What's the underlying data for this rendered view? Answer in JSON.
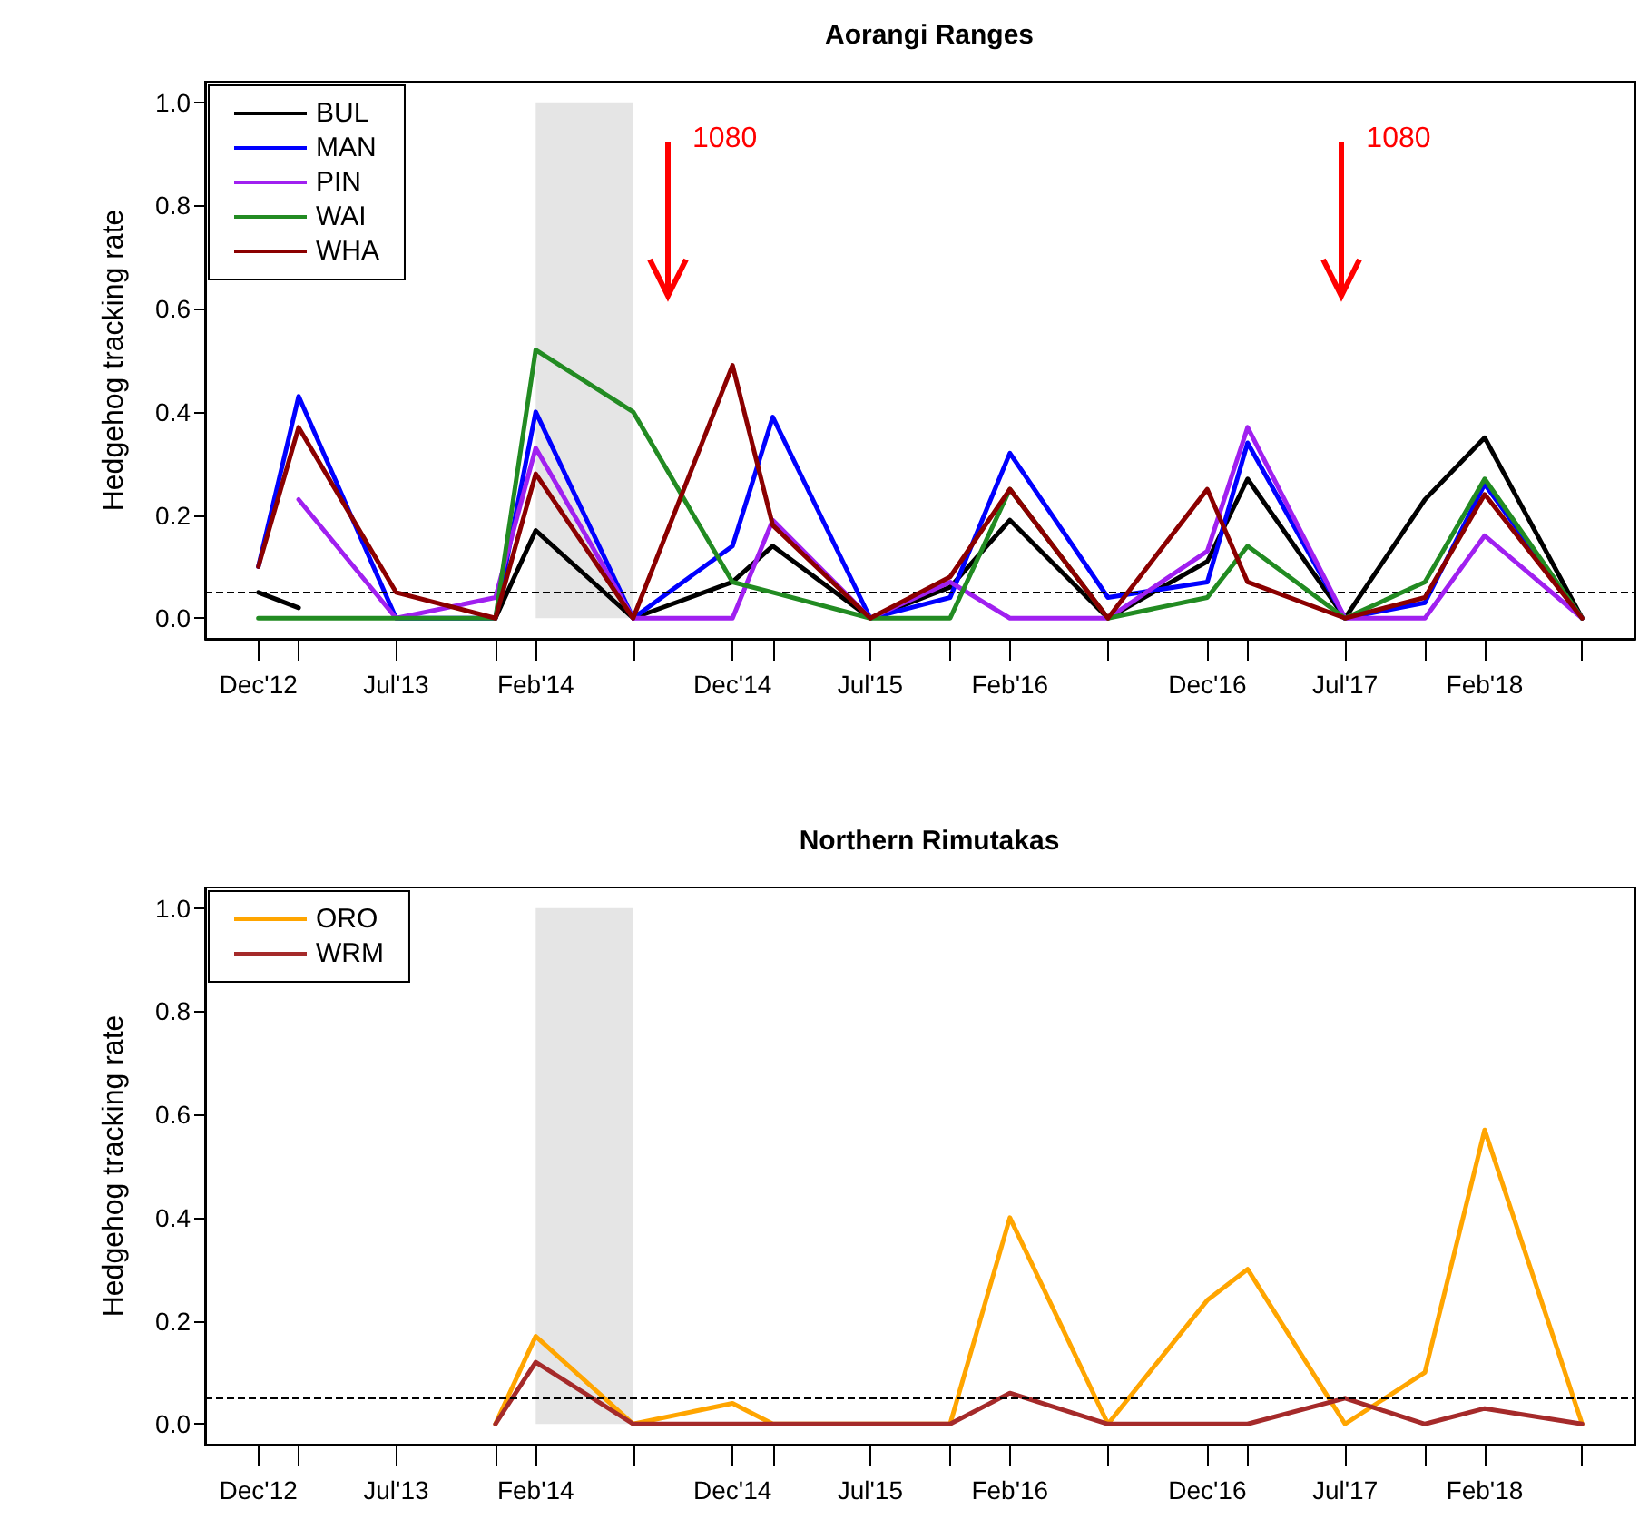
{
  "chart_data": [
    {
      "type": "line",
      "title": "Aorangi Ranges",
      "ylabel": "Hedgehog tracking rate",
      "x": [
        "2012-12",
        "2013-02",
        "2013-07",
        "2013-12",
        "2014-02",
        "2014-07",
        "2014-12",
        "2015-02",
        "2015-07",
        "2015-11",
        "2016-02",
        "2016-07",
        "2016-12",
        "2017-02",
        "2017-07",
        "2017-11",
        "2018-02",
        "2018-07"
      ],
      "series": [
        {
          "name": "BUL",
          "color": "#000000",
          "values": [
            0.05,
            0.02,
            null,
            0,
            0.17,
            0,
            0.07,
            0.14,
            0,
            0.06,
            0.19,
            0,
            0.11,
            0.27,
            0,
            0.23,
            0.35,
            0
          ]
        },
        {
          "name": "MAN",
          "color": "#0000ff",
          "values": [
            0.1,
            0.43,
            0,
            0,
            0.4,
            0,
            0.14,
            0.39,
            0,
            0.04,
            0.32,
            0.04,
            0.07,
            0.34,
            0,
            0.03,
            0.26,
            0
          ]
        },
        {
          "name": "PIN",
          "color": "#a020f0",
          "values": [
            null,
            0.23,
            0,
            0.04,
            0.33,
            0,
            0,
            0.19,
            0,
            0.07,
            0,
            0,
            0.13,
            0.37,
            0,
            0,
            0.16,
            0
          ]
        },
        {
          "name": "WAI",
          "color": "#228b22",
          "values": [
            0,
            0,
            0,
            0,
            0.52,
            0.4,
            0.07,
            0.05,
            0,
            0,
            0.25,
            0,
            0.04,
            0.14,
            0,
            0.07,
            0.27,
            0
          ]
        },
        {
          "name": "WHA",
          "color": "#8b0000",
          "values": [
            0.1,
            0.37,
            0.05,
            0,
            0.28,
            0,
            0.49,
            0.18,
            0,
            0.08,
            0.25,
            0,
            0.25,
            0.07,
            0,
            0.04,
            0.24,
            0
          ]
        }
      ],
      "xlim": [
        "2012-09-10",
        "2018-09-21"
      ],
      "xticks": [
        {
          "value": "2012-12",
          "label": "Dec'12"
        },
        {
          "value": "2013-02",
          "label": null
        },
        {
          "value": "2013-07",
          "label": "Jul'13"
        },
        {
          "value": "2013-12",
          "label": null
        },
        {
          "value": "2014-02",
          "label": "Feb'14"
        },
        {
          "value": "2014-07",
          "label": null
        },
        {
          "value": "2014-12",
          "label": "Dec'14"
        },
        {
          "value": "2015-02",
          "label": null
        },
        {
          "value": "2015-07",
          "label": "Jul'15"
        },
        {
          "value": "2015-11",
          "label": null
        },
        {
          "value": "2016-02",
          "label": "Feb'16"
        },
        {
          "value": "2016-07",
          "label": null
        },
        {
          "value": "2016-12",
          "label": "Dec'16"
        },
        {
          "value": "2017-02",
          "label": null
        },
        {
          "value": "2017-07",
          "label": "Jul'17"
        },
        {
          "value": "2017-11",
          "label": null
        },
        {
          "value": "2018-02",
          "label": "Feb'18"
        },
        {
          "value": "2018-07",
          "label": null
        }
      ],
      "ylim": [
        -0.04,
        1.04
      ],
      "yticks": [
        {
          "value": 0,
          "label": "0.0"
        },
        {
          "value": 0.2,
          "label": "0.2"
        },
        {
          "value": 0.4,
          "label": "0.4"
        },
        {
          "value": 0.6,
          "label": "0.6"
        },
        {
          "value": 0.8,
          "label": "0.8"
        },
        {
          "value": 1,
          "label": "1.0"
        }
      ],
      "ref_lines": [
        {
          "axis": "y",
          "value": 0.05,
          "color": "#000000",
          "line_style": "dashed"
        }
      ],
      "bands": [
        {
          "axis": "x",
          "from": "2014-02",
          "to": "2014-07",
          "color": "#e5e5e5"
        }
      ],
      "annotations": [
        "1080",
        "1080"
      ],
      "legend": "top left",
      "grid": false,
      "marker": "none"
    },
    {
      "type": "line",
      "title": "Northern Rimutakas",
      "ylabel": "Hedgehog tracking rate",
      "x": [
        "2013-12",
        "2014-02",
        "2014-07",
        "2014-12",
        "2015-02",
        "2015-07",
        "2015-11",
        "2016-02",
        "2016-07",
        "2016-12",
        "2017-02",
        "2017-07",
        "2017-11",
        "2018-02",
        "2018-07"
      ],
      "series": [
        {
          "name": "ORO",
          "color": "#ffa500",
          "values": [
            0,
            0.17,
            0,
            0.04,
            0,
            0,
            0,
            0.4,
            0,
            0.24,
            0.3,
            0,
            0.1,
            0.57,
            0
          ]
        },
        {
          "name": "WRM",
          "color": "#a52a2a",
          "values": [
            0,
            0.12,
            0,
            0,
            0,
            0,
            0,
            0.06,
            0,
            0,
            0,
            0.05,
            0,
            0.03,
            0
          ]
        }
      ],
      "xlim": [
        "2012-09-10",
        "2018-09-21"
      ],
      "xticks": [
        {
          "value": "2012-12",
          "label": "Dec'12"
        },
        {
          "value": "2013-02",
          "label": null
        },
        {
          "value": "2013-07",
          "label": "Jul'13"
        },
        {
          "value": "2013-12",
          "label": null
        },
        {
          "value": "2014-02",
          "label": "Feb'14"
        },
        {
          "value": "2014-07",
          "label": null
        },
        {
          "value": "2014-12",
          "label": "Dec'14"
        },
        {
          "value": "2015-02",
          "label": null
        },
        {
          "value": "2015-07",
          "label": "Jul'15"
        },
        {
          "value": "2015-11",
          "label": null
        },
        {
          "value": "2016-02",
          "label": "Feb'16"
        },
        {
          "value": "2016-07",
          "label": null
        },
        {
          "value": "2016-12",
          "label": "Dec'16"
        },
        {
          "value": "2017-02",
          "label": null
        },
        {
          "value": "2017-07",
          "label": "Jul'17"
        },
        {
          "value": "2017-11",
          "label": null
        },
        {
          "value": "2018-02",
          "label": "Feb'18"
        },
        {
          "value": "2018-07",
          "label": null
        }
      ],
      "ylim": [
        -0.04,
        1.04
      ],
      "yticks": [
        {
          "value": 0,
          "label": "0.0"
        },
        {
          "value": 0.2,
          "label": "0.2"
        },
        {
          "value": 0.4,
          "label": "0.4"
        },
        {
          "value": 0.6,
          "label": "0.6"
        },
        {
          "value": 0.8,
          "label": "0.8"
        },
        {
          "value": 1,
          "label": "1.0"
        }
      ],
      "ref_lines": [
        {
          "axis": "y",
          "value": 0.05,
          "color": "#000000",
          "line_style": "dashed"
        }
      ],
      "bands": [
        {
          "axis": "x",
          "from": "2014-02",
          "to": "2014-07",
          "color": "#e5e5e5"
        }
      ],
      "legend": "top left",
      "grid": false,
      "marker": "none"
    }
  ]
}
